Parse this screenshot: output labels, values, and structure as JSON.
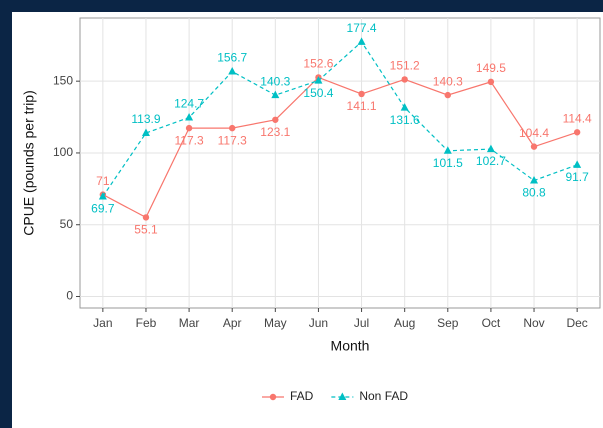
{
  "chart_data": {
    "type": "line",
    "xlabel": "Month",
    "ylabel": "CPUE (pounds per trip)",
    "categories": [
      "Jan",
      "Feb",
      "Mar",
      "Apr",
      "May",
      "Jun",
      "Jul",
      "Aug",
      "Sep",
      "Oct",
      "Nov",
      "Dec"
    ],
    "series": [
      {
        "name": "FAD",
        "color": "#F8766D",
        "linestyle": "solid",
        "marker": "circle",
        "values": [
          71,
          55.1,
          117.3,
          117.3,
          123.1,
          152.6,
          141.1,
          151.2,
          140.3,
          149.5,
          104.4,
          114.4
        ]
      },
      {
        "name": "Non FAD",
        "color": "#00BFC4",
        "linestyle": "dashed",
        "marker": "triangle",
        "values": [
          69.7,
          113.9,
          124.7,
          156.7,
          140.3,
          150.4,
          177.4,
          131.6,
          101.5,
          102.7,
          80.8,
          91.7
        ]
      }
    ],
    "ylim": [
      -8,
      194
    ],
    "yticks": [
      0,
      50,
      100,
      150
    ],
    "grid": true,
    "legend": "bottom"
  }
}
